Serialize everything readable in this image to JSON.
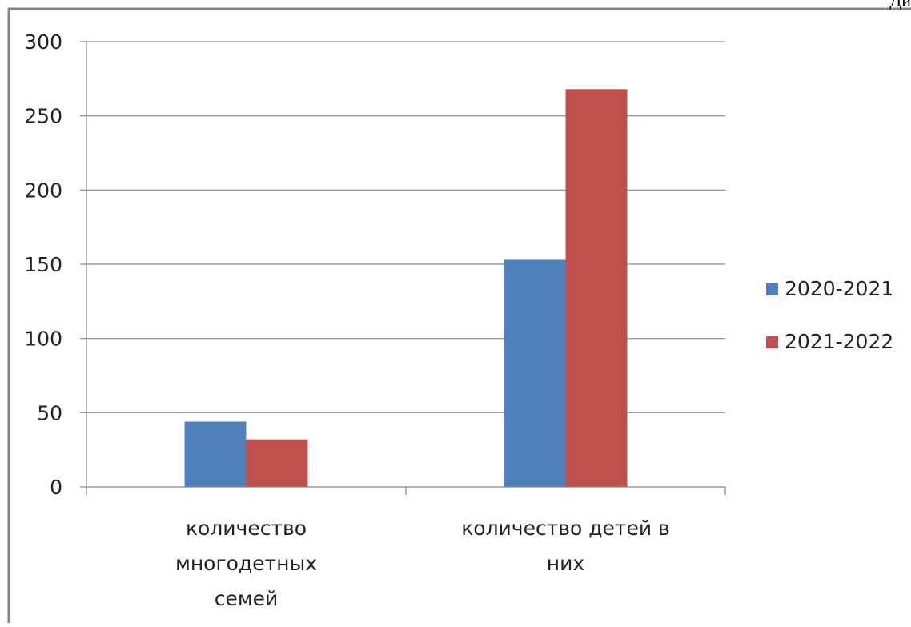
{
  "corner_text": "Ди",
  "chart_data": {
    "type": "bar",
    "title": "",
    "xlabel": "",
    "ylabel": "",
    "categories": [
      [
        "количество",
        "многодетных",
        "семей"
      ],
      [
        "количество детей в",
        "них"
      ]
    ],
    "series": [
      {
        "name": "2020-2021",
        "color": "#4F81BD",
        "values": [
          44,
          153
        ]
      },
      {
        "name": "2021-2022",
        "color": "#C0504D",
        "values": [
          32,
          268
        ]
      }
    ],
    "ylim": [
      0,
      300
    ],
    "yticks": [
      0,
      50,
      100,
      150,
      200,
      250,
      300
    ],
    "grid": true,
    "legend": "right"
  }
}
